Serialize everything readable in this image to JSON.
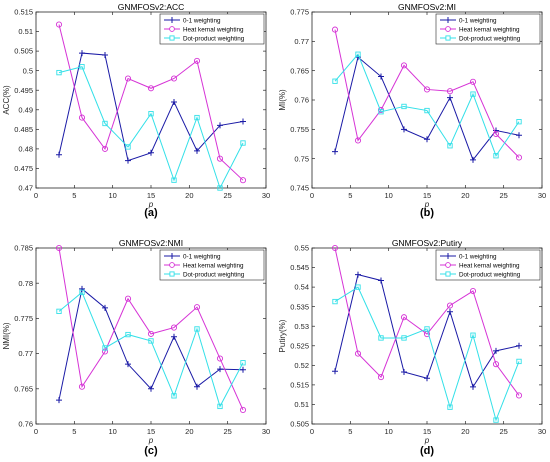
{
  "series_styles": [
    {
      "color": "#1a1aa6",
      "marker": "plus"
    },
    {
      "color": "#d633d6",
      "marker": "circle"
    },
    {
      "color": "#33e0e8",
      "marker": "square"
    }
  ],
  "chart_data": [
    {
      "type": "line",
      "panel_label": "(a)",
      "title": "GNMFOSv2:ACC",
      "xlabel": "p",
      "ylabel": "ACC(%)",
      "xlim": [
        0,
        30
      ],
      "ylim": [
        0.47,
        0.515
      ],
      "xticks": [
        "0",
        "5",
        "10",
        "15",
        "20",
        "25",
        "30"
      ],
      "yticks": [
        "0.47",
        "0.475",
        "0.48",
        "0.485",
        "0.49",
        "0.495",
        "0.5",
        "0.505",
        "0.51",
        "0.515"
      ],
      "grid": false,
      "legend_position": "top-right",
      "x": [
        3,
        6,
        9,
        12,
        15,
        18,
        21,
        24,
        27
      ],
      "series": [
        {
          "name": "0-1 weighting",
          "values": [
            0.4785,
            0.5045,
            0.504,
            0.477,
            0.479,
            0.492,
            0.4795,
            0.486,
            0.487
          ]
        },
        {
          "name": "Heat kernal weighting",
          "values": [
            0.5118,
            0.488,
            0.48,
            0.498,
            0.4955,
            0.498,
            0.5025,
            0.4775,
            0.472
          ]
        },
        {
          "name": "Dot-product weighting",
          "values": [
            0.4995,
            0.501,
            0.4865,
            0.4805,
            0.489,
            0.472,
            0.488,
            0.47,
            0.4815
          ]
        }
      ]
    },
    {
      "type": "line",
      "panel_label": "(b)",
      "title": "GNMFOSv2:MI",
      "xlabel": "p",
      "ylabel": "MI(%)",
      "xlim": [
        0,
        30
      ],
      "ylim": [
        0.745,
        0.775
      ],
      "xticks": [
        "0",
        "5",
        "10",
        "15",
        "20",
        "25",
        "30"
      ],
      "yticks": [
        "0.745",
        "0.75",
        "0.755",
        "0.76",
        "0.765",
        "0.77",
        "0.775"
      ],
      "grid": false,
      "legend_position": "top-right",
      "x": [
        3,
        6,
        9,
        12,
        15,
        18,
        21,
        24,
        27
      ],
      "series": [
        {
          "name": "0-1 weighting",
          "values": [
            0.7512,
            0.7673,
            0.764,
            0.755,
            0.7533,
            0.7604,
            0.7498,
            0.7548,
            0.754
          ]
        },
        {
          "name": "Heat kernal weighting",
          "values": [
            0.772,
            0.7531,
            0.7583,
            0.7659,
            0.7618,
            0.7615,
            0.7631,
            0.7542,
            0.7502
          ]
        },
        {
          "name": "Dot-product weighting",
          "values": [
            0.7632,
            0.7678,
            0.758,
            0.7589,
            0.7582,
            0.7522,
            0.761,
            0.7505,
            0.7563
          ]
        }
      ]
    },
    {
      "type": "line",
      "panel_label": "(c)",
      "title": "GNMFOSv2:NMI",
      "xlabel": "p",
      "ylabel": "NMI(%)",
      "xlim": [
        0,
        30
      ],
      "ylim": [
        0.76,
        0.785
      ],
      "xticks": [
        "0",
        "5",
        "10",
        "15",
        "20",
        "25",
        "30"
      ],
      "yticks": [
        "0.76",
        "0.765",
        "0.77",
        "0.775",
        "0.78",
        "0.785"
      ],
      "grid": false,
      "legend_position": "top-right",
      "x": [
        3,
        6,
        9,
        12,
        15,
        18,
        21,
        24,
        27
      ],
      "series": [
        {
          "name": "0-1 weighting",
          "values": [
            0.7634,
            0.7792,
            0.7765,
            0.7685,
            0.765,
            0.7724,
            0.7653,
            0.7678,
            0.7677
          ]
        },
        {
          "name": "Heat kernal weighting",
          "values": [
            0.785,
            0.7653,
            0.7703,
            0.7778,
            0.7728,
            0.7737,
            0.7766,
            0.7693,
            0.762
          ]
        },
        {
          "name": "Dot-product weighting",
          "values": [
            0.776,
            0.7787,
            0.7708,
            0.7727,
            0.7718,
            0.764,
            0.7735,
            0.7625,
            0.7687
          ]
        }
      ]
    },
    {
      "type": "line",
      "panel_label": "(d)",
      "title": "GNMFOSv2:Putiry",
      "xlabel": "p",
      "ylabel": "Putiry(%)",
      "xlim": [
        0,
        30
      ],
      "ylim": [
        0.505,
        0.55
      ],
      "xticks": [
        "0",
        "5",
        "10",
        "15",
        "20",
        "25",
        "30"
      ],
      "yticks": [
        "0.505",
        "0.51",
        "0.515",
        "0.52",
        "0.525",
        "0.53",
        "0.535",
        "0.54",
        "0.545",
        "0.55"
      ],
      "grid": false,
      "legend_position": "top-right",
      "x": [
        3,
        6,
        9,
        12,
        15,
        18,
        21,
        24,
        27
      ],
      "series": [
        {
          "name": "0-1 weighting",
          "values": [
            0.5185,
            0.5432,
            0.5417,
            0.5183,
            0.5167,
            0.5337,
            0.5145,
            0.5237,
            0.525
          ]
        },
        {
          "name": "Heat kernal weighting",
          "values": [
            0.55,
            0.523,
            0.517,
            0.5323,
            0.528,
            0.5353,
            0.539,
            0.5203,
            0.5123
          ]
        },
        {
          "name": "Dot-product weighting",
          "values": [
            0.5363,
            0.54,
            0.527,
            0.527,
            0.5293,
            0.5093,
            0.5277,
            0.506,
            0.521
          ]
        }
      ]
    }
  ]
}
